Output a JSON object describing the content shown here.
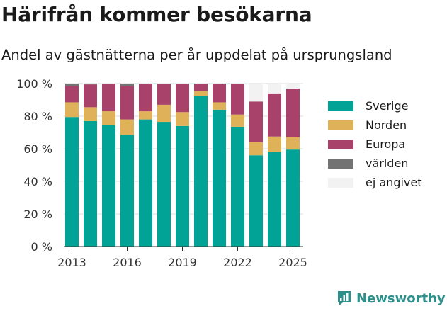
{
  "title": "Härifrån kommer besökarna",
  "subtitle": "Andel av gästnätterna per år uppdelat på ursprungsland",
  "brand": {
    "name": "Newsworthy",
    "icon": "newsworthy-logo-icon",
    "color": "#2f8f8a"
  },
  "chart_data": {
    "type": "bar",
    "stacked": true,
    "categories": [
      "2013",
      "2014",
      "2015",
      "2016",
      "2017",
      "2018",
      "2019",
      "2020",
      "2021",
      "2022",
      "2023",
      "2024",
      "2025"
    ],
    "x_tick_labels": [
      "2013",
      "2016",
      "2019",
      "2022",
      "2025"
    ],
    "y_tick_labels": [
      "0 %",
      "20 %",
      "40 %",
      "60 %",
      "80 %",
      "100 %"
    ],
    "ylim": [
      0,
      100
    ],
    "grid": true,
    "legend_position": "right",
    "series": [
      {
        "name": "Sverige",
        "color": "#00a396",
        "values": [
          79.5,
          77,
          74.5,
          68.5,
          78,
          76.5,
          74,
          92.5,
          84,
          73.5,
          56,
          58,
          59.5
        ]
      },
      {
        "name": "Norden",
        "color": "#dfb158",
        "values": [
          9,
          8.5,
          8.5,
          9.5,
          5,
          10.5,
          8.5,
          3,
          4.5,
          7.5,
          8,
          9.5,
          7.5
        ]
      },
      {
        "name": "Europa",
        "color": "#a8426a",
        "values": [
          10,
          14,
          17,
          20.5,
          17,
          13,
          17.5,
          4.5,
          11.5,
          19,
          25,
          26.5,
          30
        ]
      },
      {
        "name": "världen",
        "color": "#737373",
        "values": [
          1.5,
          0.5,
          0,
          1.5,
          0,
          0,
          0,
          0,
          0,
          0,
          0,
          0,
          0
        ]
      },
      {
        "name": "ej angivet",
        "color": "#f2f2f2",
        "values": [
          0,
          0,
          0,
          0,
          0,
          0,
          0,
          0,
          0,
          0,
          11,
          6,
          3
        ]
      }
    ]
  }
}
